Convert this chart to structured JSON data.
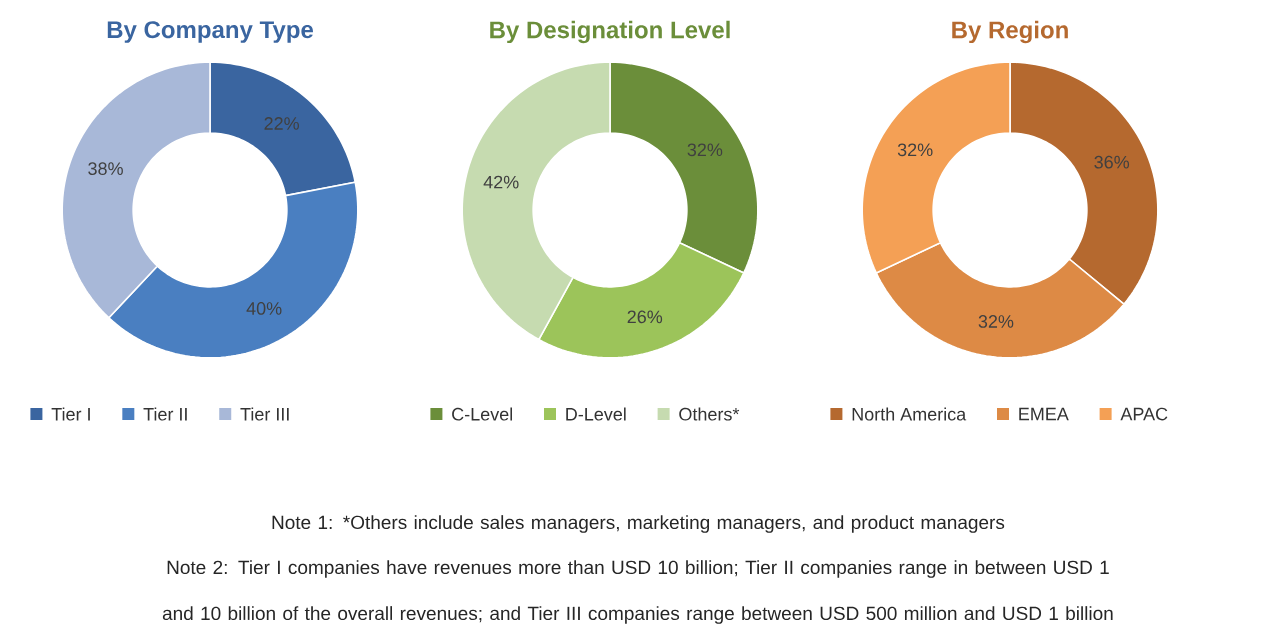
{
  "chart_data": [
    {
      "type": "donut",
      "title": "By Company Type",
      "categories": [
        "Tier I",
        "Tier II",
        "Tier III"
      ],
      "values": [
        22,
        40,
        38
      ],
      "value_labels": [
        "22%",
        "40%",
        "38%"
      ],
      "colors": [
        "#3a65a0",
        "#4a7fc1",
        "#a8b8d8"
      ],
      "legend": "bottom",
      "annotations": [
        "Note 1: *Others include sales managers, marketing managers, and product managers",
        "Note 2: Tier I companies have revenues more than USD 10 billion; Tier II companies range in between USD 1 and 10 billion of the overall revenues; and Tier III companies range between USD 500 million and USD 1 billion"
      ]
    },
    {
      "type": "donut",
      "title": "By Designation Level",
      "categories": [
        "C-Level",
        "D-Level",
        "Others*"
      ],
      "values": [
        32,
        26,
        42
      ],
      "value_labels": [
        "32%",
        "26%",
        "42%"
      ],
      "colors": [
        "#6b8e3a",
        "#9cc45a",
        "#c6dbb0"
      ],
      "legend": "bottom"
    },
    {
      "type": "donut",
      "title": "By Region",
      "categories": [
        "North America",
        "EMEA",
        "APAC"
      ],
      "values": [
        36,
        32,
        32
      ],
      "value_labels": [
        "36%",
        "32%",
        "32%"
      ],
      "colors": [
        "#b5692f",
        "#dd8a45",
        "#f4a055"
      ],
      "legend": "bottom"
    }
  ]
}
